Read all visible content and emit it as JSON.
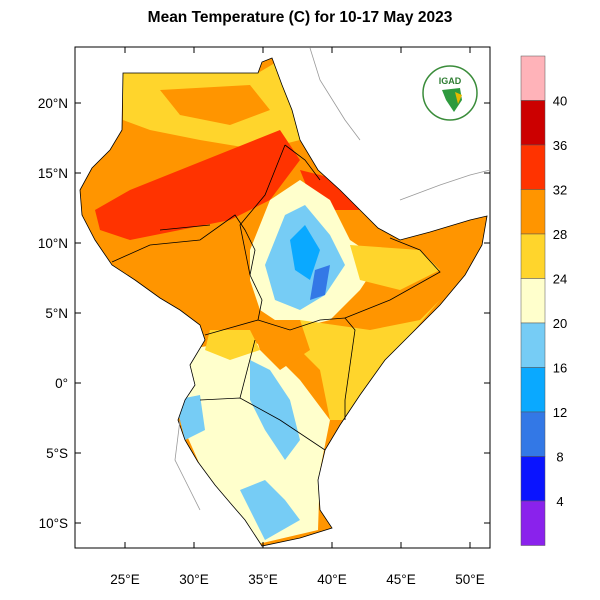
{
  "title": "Mean Temperature (C) for 10-17 May 2023",
  "logo_text": "IGAD",
  "lat_labels": [
    "20°N",
    "15°N",
    "10°N",
    "5°N",
    "0°",
    "5°S",
    "10°S"
  ],
  "lon_labels": [
    "25°E",
    "30°E",
    "35°E",
    "40°E",
    "45°E",
    "50°E"
  ],
  "colorbar": {
    "labels": [
      "40",
      "36",
      "32",
      "28",
      "24",
      "20",
      "16",
      "12",
      "8",
      "4"
    ],
    "colors": [
      "#ffb3b9",
      "#cc0000",
      "#ff3300",
      "#ff9500",
      "#ffd52c",
      "#ffffcc",
      "#76ccf5",
      "#0aa9ff",
      "#3378e6",
      "#0a14ff",
      "#8a22ec"
    ]
  }
}
